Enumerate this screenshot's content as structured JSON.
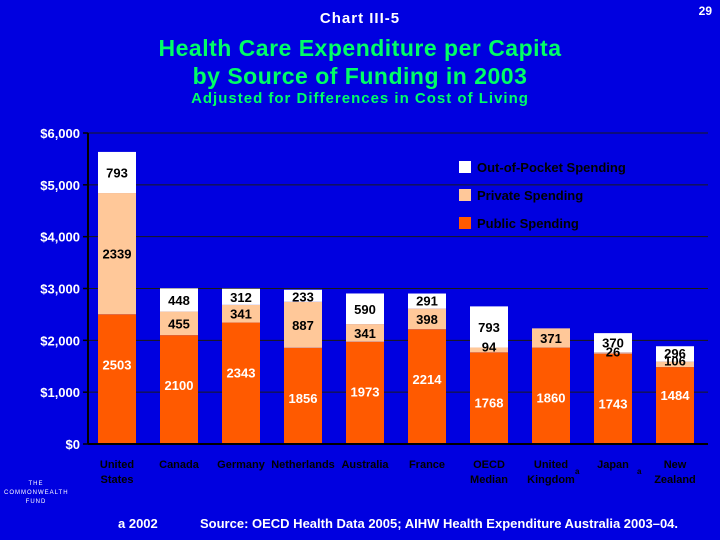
{
  "header": {
    "chart_label": "Chart III-5",
    "page_number": "29",
    "title_line1": "Health Care Expenditure per Capita",
    "title_line2": "by Source of Funding in 2003",
    "subtitle": "Adjusted for Differences in Cost of Living"
  },
  "colors": {
    "background": "#0000e0",
    "public": "#ff5a00",
    "private": "#ffc899",
    "out_of_pocket": "#ffffff",
    "title": "#00ff66"
  },
  "chart_data": {
    "type": "bar",
    "stacked": true,
    "categories": [
      [
        "United",
        "States"
      ],
      [
        "Canada"
      ],
      [
        "Germany"
      ],
      [
        "Netherlands"
      ],
      [
        "Australia"
      ],
      [
        "France"
      ],
      [
        "OECD",
        "Median"
      ],
      [
        "United",
        "Kingdom"
      ],
      [
        "Japan"
      ],
      [
        "New",
        "Zealand"
      ]
    ],
    "category_marks": [
      "",
      "",
      "",
      "",
      "",
      "",
      "",
      "a",
      "a",
      ""
    ],
    "series": [
      {
        "name": "Public Spending",
        "values": [
          2503,
          2100,
          2343,
          1856,
          1973,
          2214,
          1768,
          1860,
          1743,
          1484
        ]
      },
      {
        "name": "Private Spending",
        "values": [
          2339,
          455,
          341,
          887,
          341,
          398,
          94,
          371,
          26,
          106
        ]
      },
      {
        "name": "Out-of-Pocket Spending",
        "values": [
          793,
          448,
          312,
          233,
          590,
          291,
          793,
          null,
          370,
          296
        ]
      }
    ],
    "legend_order": [
      "Out-of-Pocket Spending",
      "Private Spending",
      "Public Spending"
    ],
    "legend_position": "top-right",
    "y_ticks": [
      "$0",
      "$1,000",
      "$2,000",
      "$3,000",
      "$4,000",
      "$5,000",
      "$6,000"
    ],
    "ylim": [
      0,
      6000
    ],
    "title": "Health Care Expenditure per Capita by Source of Funding in 2003",
    "xlabel": "",
    "ylabel": ""
  },
  "footer": {
    "logo_line1": "THE",
    "logo_line2": "COMMONWEALTH",
    "logo_line3": "FUND",
    "footnote": "a 2002",
    "source": "Source: OECD Health Data 2005; AIHW Health Expenditure Australia 2003–04."
  }
}
